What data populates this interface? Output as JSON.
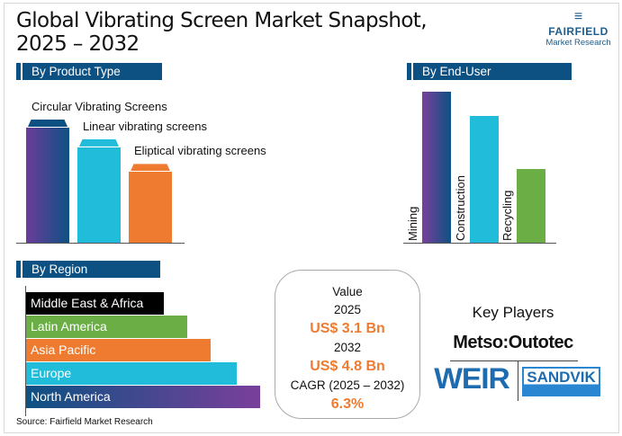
{
  "title_line1": "Global Vibrating Screen Market Snapshot,",
  "title_line2": "2025 – 2032",
  "logo": {
    "brand": "FAIRFIELD",
    "sub": "Market Research"
  },
  "chart_data": [
    {
      "type": "bar",
      "title": "By Product Type",
      "categories": [
        "Circular Vibrating Screens",
        "Linear vibrating screens",
        "Eliptical vibrating screens"
      ],
      "values": [
        100,
        84,
        64
      ],
      "colors": [
        "#5b3f9a",
        "#20bcd9",
        "#ef7b30"
      ]
    },
    {
      "type": "bar",
      "title": "By End-User",
      "categories": [
        "Mining",
        "Construction",
        "Recycling"
      ],
      "values": [
        100,
        84,
        49
      ],
      "colors": [
        "#1d4f86",
        "#20bcd9",
        "#6aae45"
      ]
    },
    {
      "type": "bar",
      "orientation": "horizontal",
      "title": "By Region",
      "categories": [
        "Middle East & Africa",
        "Latin America",
        "Asia Pacific",
        "Europe",
        "North America"
      ],
      "values": [
        59,
        69,
        79,
        90,
        100
      ],
      "colors": [
        "#000000",
        "#6aae45",
        "#ef7b30",
        "#20bcd9",
        "#1d4f86"
      ]
    }
  ],
  "value_box": {
    "label": "Value",
    "year1": "2025",
    "value1": "US$ 3.1 Bn",
    "year2": "2032",
    "value2": "US$ 4.8 Bn",
    "cagr_label": "CAGR (2025 – 2032)",
    "cagr": "6.3%"
  },
  "key_players": {
    "title": "Key Players",
    "players": [
      "Metso:Outotec",
      "WEIR",
      "SANDVIK"
    ]
  },
  "source": "Source: Fairfield Market Research"
}
